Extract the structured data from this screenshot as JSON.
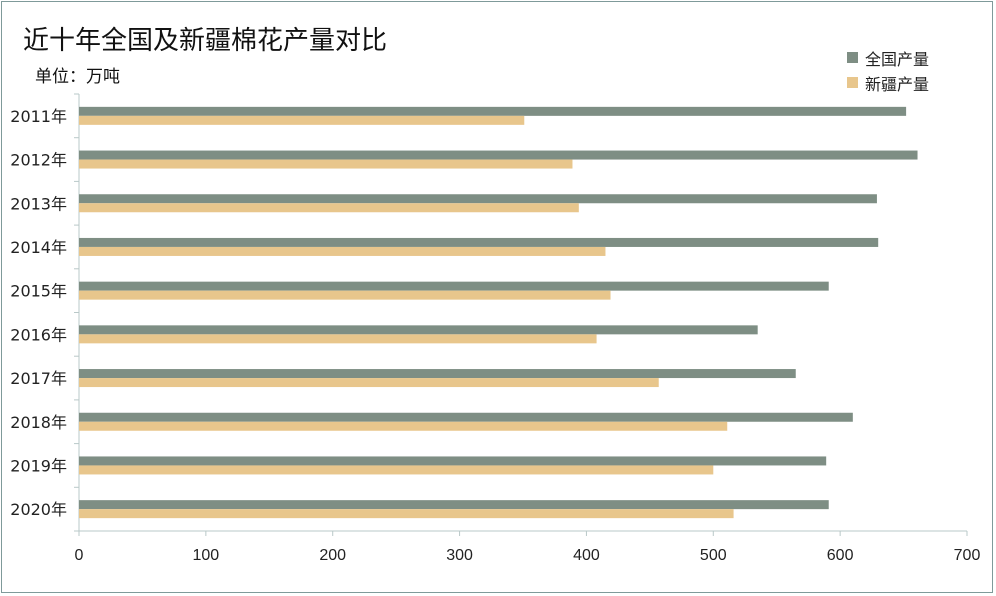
{
  "chart_data": {
    "type": "bar",
    "orientation": "horizontal",
    "title": "近十年全国及新疆棉花产量对比",
    "subtitle": "单位：万吨",
    "categories": [
      "2011年",
      "2012年",
      "2013年",
      "2014年",
      "2015年",
      "2016年",
      "2017年",
      "2018年",
      "2019年",
      "2020年"
    ],
    "series": [
      {
        "name": "全国产量",
        "color": "#7e8e84",
        "values": [
          652,
          661,
          629,
          630,
          591,
          535,
          565,
          610,
          589,
          591
        ]
      },
      {
        "name": "新疆产量",
        "color": "#e8c68c",
        "values": [
          351,
          389,
          394,
          415,
          419,
          408,
          457,
          511,
          500,
          516
        ]
      }
    ],
    "xlim": [
      0,
      700
    ],
    "xticks": [
      0,
      100,
      200,
      300,
      400,
      500,
      600,
      700
    ],
    "grid": false,
    "legend_position": "top-right"
  }
}
